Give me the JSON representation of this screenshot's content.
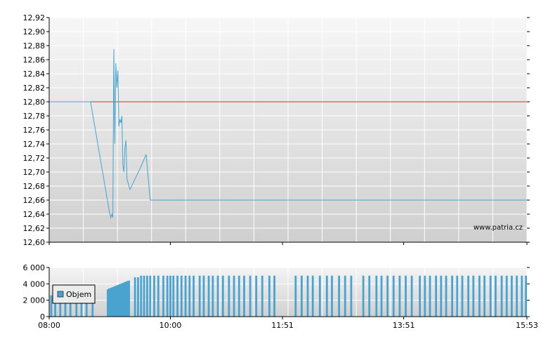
{
  "chart_data": [
    {
      "type": "line",
      "watermark": "www.patria.cz",
      "ylim": [
        12.6,
        12.92
      ],
      "y_ticks": [
        "12,60",
        "12,62",
        "12,64",
        "12,66",
        "12,68",
        "12,70",
        "12,72",
        "12,74",
        "12,76",
        "12,78",
        "12,80",
        "12,82",
        "12,84",
        "12,86",
        "12,88",
        "12,90",
        "12,92"
      ],
      "y_tick_values": [
        12.6,
        12.62,
        12.64,
        12.66,
        12.68,
        12.7,
        12.72,
        12.74,
        12.76,
        12.78,
        12.8,
        12.82,
        12.84,
        12.86,
        12.88,
        12.9,
        12.92
      ],
      "reference_line": {
        "value": 12.8,
        "color": "#d62c2c"
      },
      "series": [
        {
          "color": "#4aa3cf",
          "points": [
            [
              "08:00",
              12.8
            ],
            [
              "08:41",
              12.8
            ],
            [
              "09:00",
              12.64
            ],
            [
              "09:01",
              12.635
            ],
            [
              "09:02",
              12.64
            ],
            [
              "09:03",
              12.635
            ],
            [
              "09:04",
              12.875
            ],
            [
              "09:05",
              12.74
            ],
            [
              "09:06",
              12.855
            ],
            [
              "09:07",
              12.82
            ],
            [
              "09:08",
              12.845
            ],
            [
              "09:09",
              12.765
            ],
            [
              "09:10",
              12.775
            ],
            [
              "09:11",
              12.77
            ],
            [
              "09:12",
              12.78
            ],
            [
              "09:13",
              12.71
            ],
            [
              "09:14",
              12.7
            ],
            [
              "09:15",
              12.735
            ],
            [
              "09:16",
              12.745
            ],
            [
              "09:17",
              12.69
            ],
            [
              "09:18",
              12.685
            ],
            [
              "09:20",
              12.675
            ],
            [
              "09:30",
              12.705
            ],
            [
              "09:36",
              12.725
            ],
            [
              "09:40",
              12.66
            ],
            [
              "15:53",
              12.66
            ]
          ]
        }
      ]
    },
    {
      "type": "bar",
      "ylim": [
        0,
        6000
      ],
      "y_ticks": [
        "0",
        "2 000",
        "4 000",
        "6 000"
      ],
      "y_tick_values": [
        0,
        2000,
        4000,
        6000
      ],
      "x_ticks": [
        "08:00",
        "10:00",
        "11:51",
        "13:51",
        "15:53"
      ],
      "legend": "Objem",
      "legend_position": "top-left",
      "color": "#4aa3cf",
      "bars": [
        [
          "08:02",
          2600
        ],
        [
          "08:06",
          2600
        ],
        [
          "08:11",
          2600
        ],
        [
          "08:16",
          2600
        ],
        [
          "08:21",
          2600
        ],
        [
          "08:27",
          2600
        ],
        [
          "08:32",
          2600
        ],
        [
          "08:37",
          2600
        ],
        [
          "08:43",
          2600
        ],
        [
          "08:58",
          3300
        ],
        [
          "08:59",
          3400
        ],
        [
          "09:00",
          3450
        ],
        [
          "09:01",
          3500
        ],
        [
          "09:02",
          3550
        ],
        [
          "09:03",
          3600
        ],
        [
          "09:04",
          3650
        ],
        [
          "09:05",
          3700
        ],
        [
          "09:06",
          3750
        ],
        [
          "09:07",
          3800
        ],
        [
          "09:08",
          3850
        ],
        [
          "09:09",
          3900
        ],
        [
          "09:10",
          3950
        ],
        [
          "09:11",
          4000
        ],
        [
          "09:12",
          4050
        ],
        [
          "09:13",
          4100
        ],
        [
          "09:14",
          4150
        ],
        [
          "09:15",
          4200
        ],
        [
          "09:16",
          4250
        ],
        [
          "09:17",
          4300
        ],
        [
          "09:18",
          4350
        ],
        [
          "09:19",
          4400
        ],
        [
          "09:25",
          4800
        ],
        [
          "09:28",
          4800
        ],
        [
          "09:31",
          5000
        ],
        [
          "09:34",
          5000
        ],
        [
          "09:37",
          5000
        ],
        [
          "09:40",
          5000
        ],
        [
          "09:44",
          5000
        ],
        [
          "09:48",
          5000
        ],
        [
          "09:53",
          5000
        ],
        [
          "09:57",
          5000
        ],
        [
          "10:00",
          5000
        ],
        [
          "10:03",
          5000
        ],
        [
          "10:07",
          5000
        ],
        [
          "10:11",
          5000
        ],
        [
          "10:15",
          5000
        ],
        [
          "10:19",
          5000
        ],
        [
          "10:23",
          5000
        ],
        [
          "10:29",
          5000
        ],
        [
          "10:33",
          5000
        ],
        [
          "10:38",
          5000
        ],
        [
          "10:42",
          5000
        ],
        [
          "10:47",
          5000
        ],
        [
          "10:52",
          5000
        ],
        [
          "10:58",
          5000
        ],
        [
          "11:03",
          5000
        ],
        [
          "11:08",
          5000
        ],
        [
          "11:13",
          5000
        ],
        [
          "11:19",
          5000
        ],
        [
          "11:25",
          5000
        ],
        [
          "11:31",
          5000
        ],
        [
          "11:38",
          5000
        ],
        [
          "11:43",
          5000
        ],
        [
          "12:04",
          5000
        ],
        [
          "12:10",
          5000
        ],
        [
          "12:16",
          5000
        ],
        [
          "12:21",
          5000
        ],
        [
          "12:28",
          5000
        ],
        [
          "12:35",
          5000
        ],
        [
          "12:40",
          5000
        ],
        [
          "12:47",
          5000
        ],
        [
          "12:53",
          5000
        ],
        [
          "12:59",
          5000
        ],
        [
          "13:11",
          5000
        ],
        [
          "13:17",
          5000
        ],
        [
          "13:24",
          5000
        ],
        [
          "13:29",
          5000
        ],
        [
          "13:35",
          5000
        ],
        [
          "13:41",
          5000
        ],
        [
          "13:47",
          5000
        ],
        [
          "13:53",
          5000
        ],
        [
          "13:59",
          5000
        ],
        [
          "14:07",
          5000
        ],
        [
          "14:12",
          5000
        ],
        [
          "14:17",
          5000
        ],
        [
          "14:23",
          5000
        ],
        [
          "14:28",
          5000
        ],
        [
          "14:33",
          5000
        ],
        [
          "14:39",
          5000
        ],
        [
          "14:44",
          5000
        ],
        [
          "14:49",
          5000
        ],
        [
          "14:55",
          5000
        ],
        [
          "15:00",
          5000
        ],
        [
          "15:06",
          5000
        ],
        [
          "15:11",
          5000
        ],
        [
          "15:17",
          5000
        ],
        [
          "15:22",
          5000
        ],
        [
          "15:28",
          5000
        ],
        [
          "15:33",
          5000
        ],
        [
          "15:38",
          5000
        ],
        [
          "15:43",
          5000
        ],
        [
          "15:48",
          5000
        ],
        [
          "15:52",
          5000
        ]
      ]
    }
  ]
}
